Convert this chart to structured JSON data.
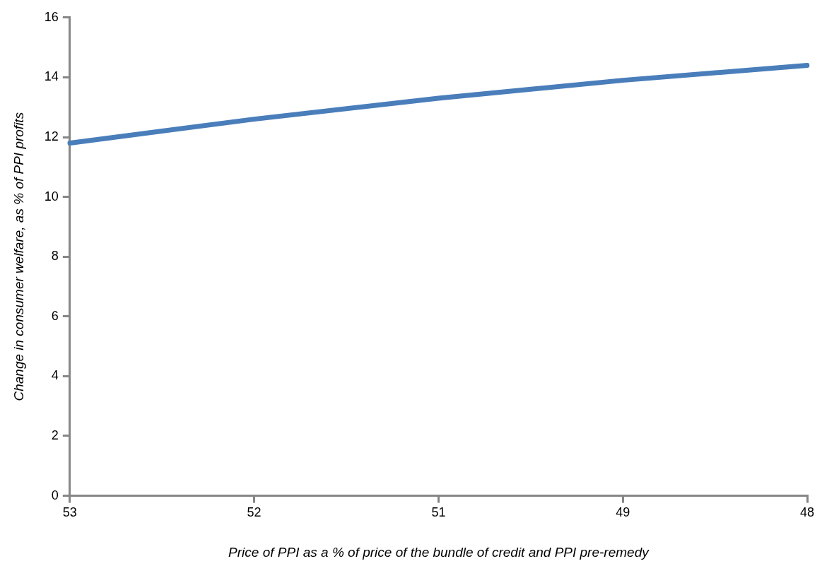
{
  "chart_data": {
    "type": "line",
    "xlabel": "Price of PPI as a % of price of the bundle of credit and PPI pre-remedy",
    "ylabel": "Change in consumer welfare, as % of PPI profits",
    "categories": [
      "53",
      "52",
      "51",
      "49",
      "48"
    ],
    "series": [
      {
        "color": "#4a7ebb",
        "values": [
          11.8,
          12.6,
          13.3,
          13.9,
          14.4
        ]
      }
    ],
    "ylim": [
      0,
      16
    ],
    "yticks": [
      0,
      2,
      4,
      6,
      8,
      10,
      12,
      14,
      16
    ],
    "grid": false,
    "legend": false,
    "marker": "none",
    "line_style": "solid"
  }
}
